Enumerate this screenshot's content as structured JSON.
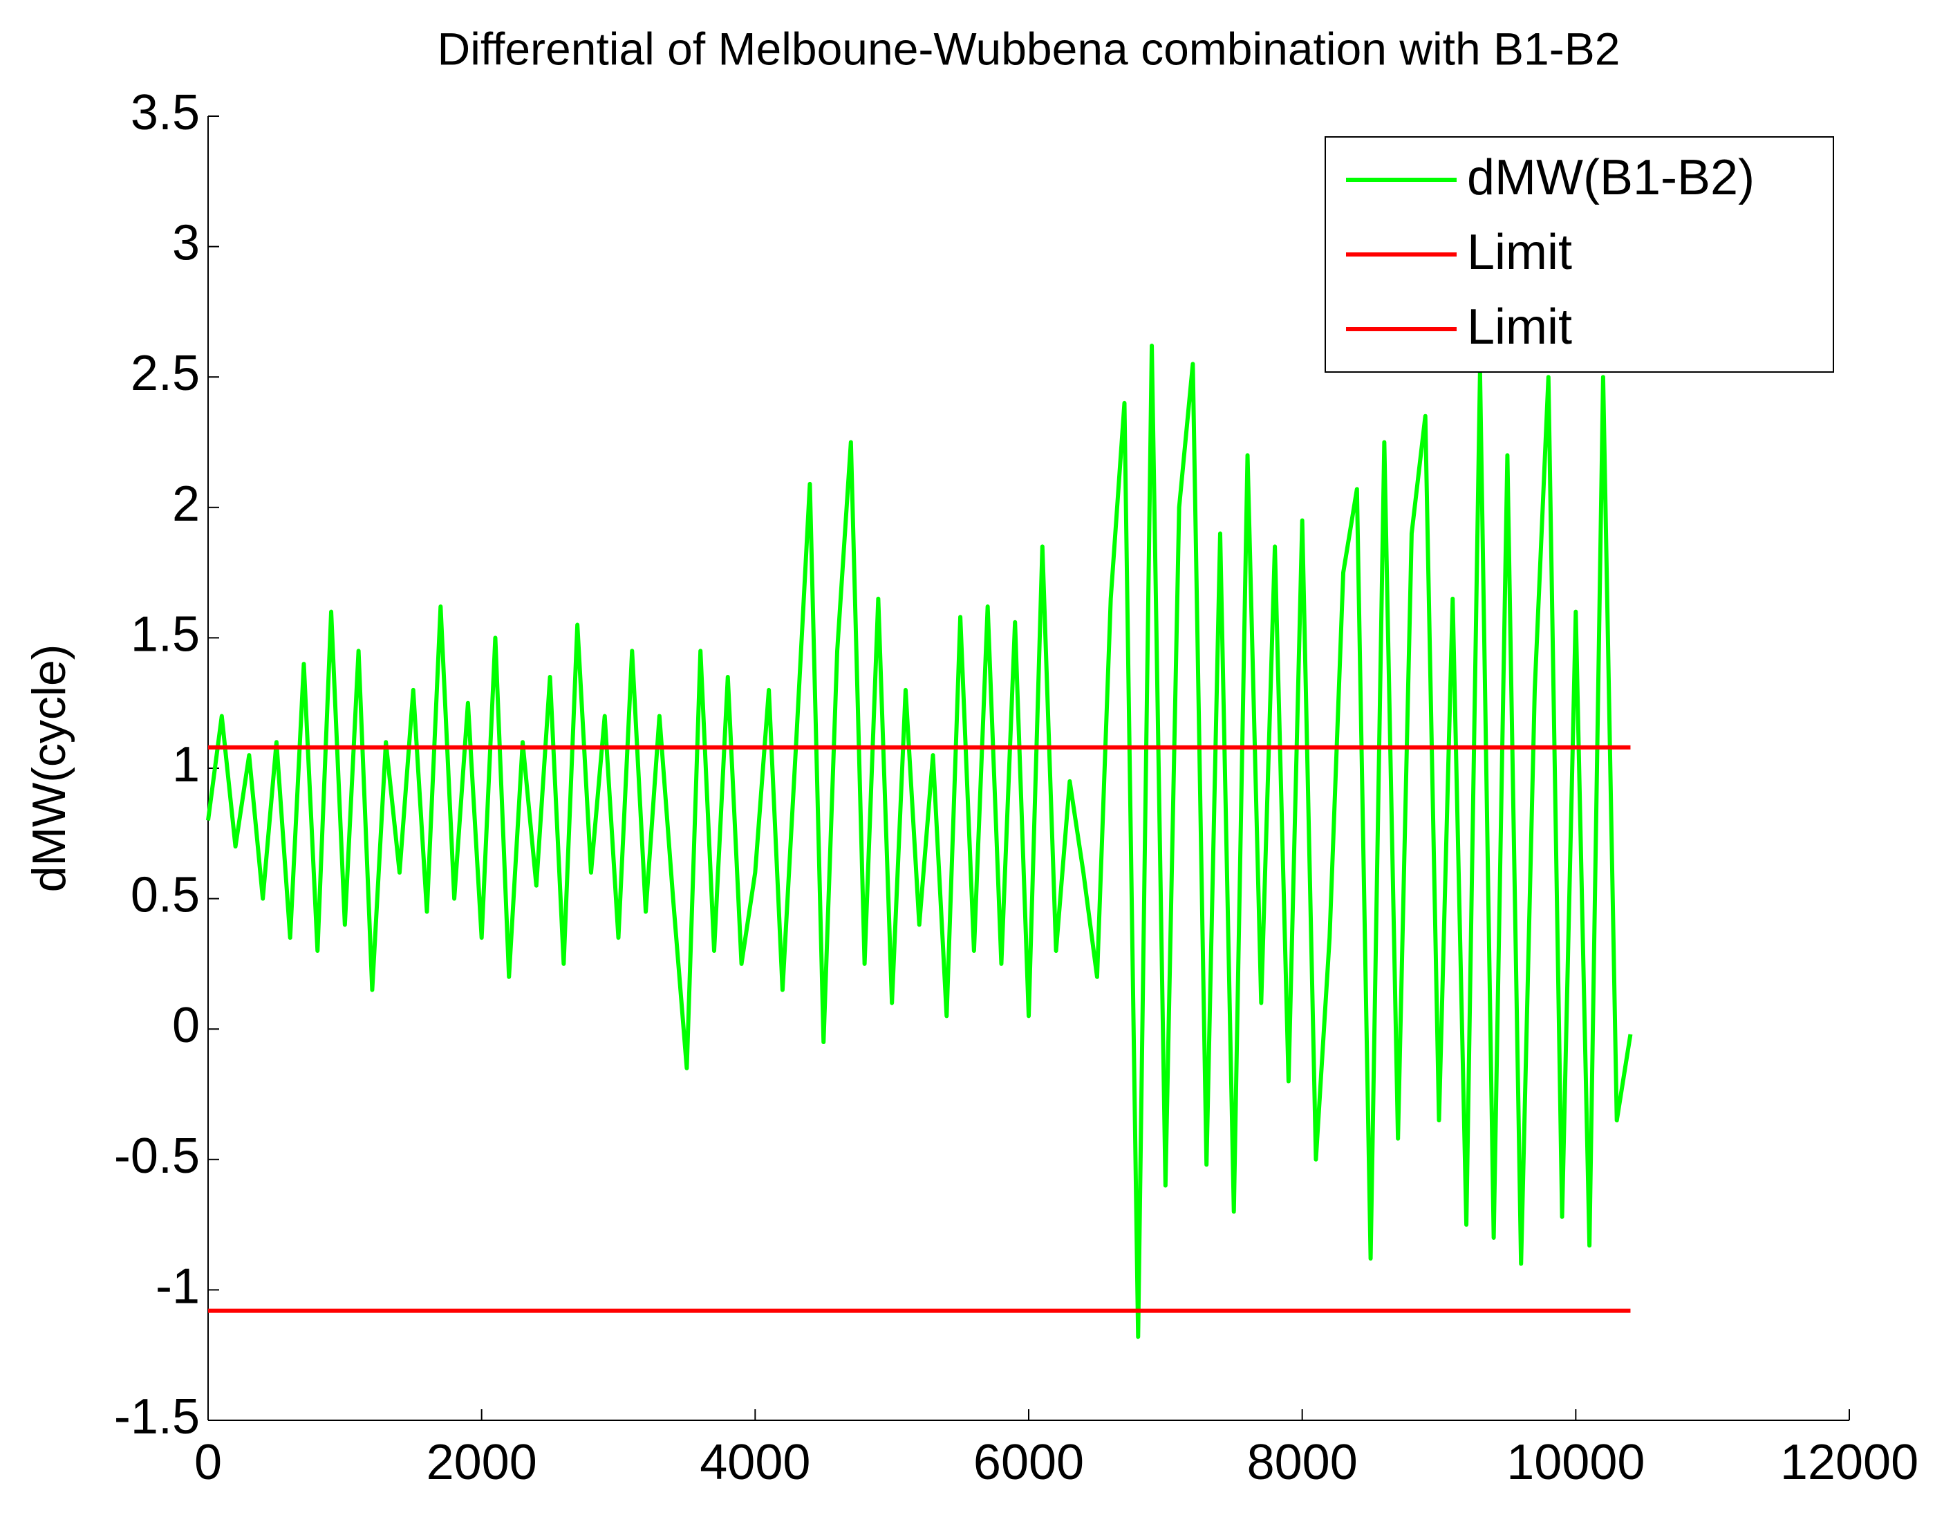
{
  "chart_data": {
    "type": "line",
    "title": "Differential of Melboune-Wubbena combination with B1-B2",
    "y_label": "dMW(cycle)",
    "xlim": [
      0,
      12000
    ],
    "xticks": [
      0,
      2000,
      4000,
      6000,
      8000,
      10000,
      12000
    ],
    "ylim": [
      -1.5,
      3.5
    ],
    "yticks": [
      -1.5,
      -1,
      -0.5,
      0,
      0.5,
      1,
      1.5,
      2,
      2.5,
      3,
      3.5
    ],
    "legend": "northeast",
    "series": [
      {
        "name": "dMW(B1-B2)",
        "color": "#00ff00",
        "x": [
          0,
          100,
          200,
          300,
          400,
          500,
          600,
          700,
          800,
          900,
          1000,
          1100,
          1200,
          1300,
          1400,
          1500,
          1600,
          1700,
          1800,
          1900,
          2000,
          2100,
          2200,
          2300,
          2400,
          2500,
          2600,
          2700,
          2800,
          2900,
          3000,
          3100,
          3200,
          3300,
          3400,
          3500,
          3600,
          3700,
          3800,
          3900,
          4000,
          4100,
          4200,
          4300,
          4400,
          4500,
          4600,
          4700,
          4800,
          4900,
          5000,
          5100,
          5200,
          5300,
          5400,
          5500,
          5600,
          5700,
          5800,
          5900,
          6000,
          6100,
          6200,
          6300,
          6400,
          6500,
          6600,
          6700,
          6800,
          6900,
          7000,
          7100,
          7200,
          7300,
          7400,
          7500,
          7600,
          7700,
          7800,
          7900,
          8000,
          8100,
          8200,
          8300,
          8400,
          8500,
          8600,
          8700,
          8800,
          8900,
          9000,
          9100,
          9200,
          9300,
          9400,
          9500,
          9600,
          9700,
          9800,
          9900,
          10000,
          10100,
          10200,
          10300,
          10400
        ],
        "values": [
          0.8,
          1.2,
          0.7,
          1.05,
          0.5,
          1.1,
          0.35,
          1.4,
          0.3,
          1.6,
          0.4,
          1.45,
          0.15,
          1.1,
          0.6,
          1.3,
          0.45,
          1.62,
          0.5,
          1.25,
          0.35,
          1.5,
          0.2,
          1.1,
          0.55,
          1.35,
          0.25,
          1.55,
          0.6,
          1.2,
          0.35,
          1.45,
          0.45,
          1.2,
          0.5,
          -0.15,
          1.45,
          0.3,
          1.35,
          0.25,
          0.6,
          1.3,
          0.15,
          1.1,
          2.09,
          -0.05,
          1.45,
          2.25,
          0.25,
          1.65,
          0.1,
          1.3,
          0.4,
          1.05,
          0.05,
          1.58,
          0.3,
          1.62,
          0.25,
          1.56,
          0.05,
          1.85,
          0.3,
          0.95,
          0.6,
          0.2,
          1.65,
          2.4,
          -1.18,
          2.62,
          -0.6,
          2.0,
          2.55,
          -0.52,
          1.9,
          -0.7,
          2.2,
          0.1,
          1.85,
          -0.2,
          1.95,
          -0.5,
          0.35,
          1.75,
          2.07,
          -0.88,
          2.25,
          -0.42,
          1.9,
          2.35,
          -0.35,
          1.65,
          -0.75,
          2.52,
          -0.8,
          2.2,
          -0.9,
          1.3,
          2.5,
          -0.72,
          1.6,
          -0.83,
          2.5,
          -0.35,
          -0.02
        ]
      },
      {
        "name": "Limit",
        "color": "#ff0000",
        "x": [
          0,
          10400
        ],
        "values": [
          1.08,
          1.08
        ]
      },
      {
        "name": "Limit",
        "color": "#ff0000",
        "x": [
          0,
          10400
        ],
        "values": [
          -1.08,
          -1.08
        ]
      }
    ]
  }
}
